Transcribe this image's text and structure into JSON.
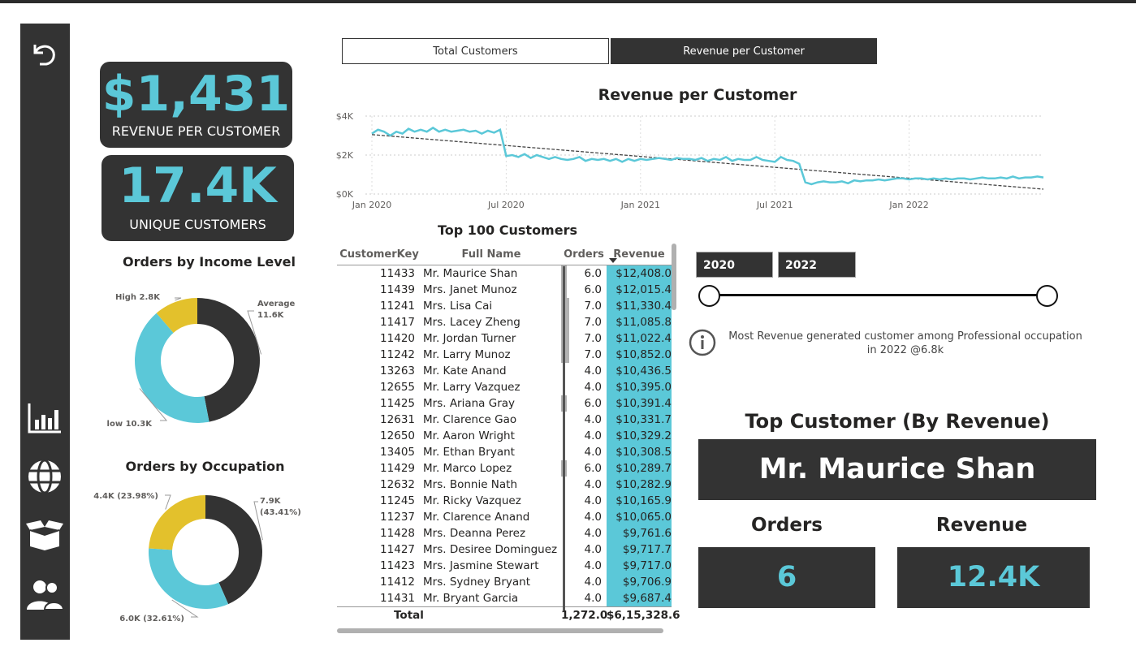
{
  "kpis": {
    "revenue_per_customer": {
      "value": "$1,431",
      "label": "REVENUE PER CUSTOMER"
    },
    "unique_customers": {
      "value": "17.4K",
      "label": "UNIQUE CUSTOMERS"
    }
  },
  "nav": {
    "icons": [
      "back-icon",
      "bar-chart-icon",
      "globe-icon",
      "box-icon",
      "users-icon"
    ]
  },
  "toggle": {
    "total_customers": "Total Customers",
    "revenue_per_customer": "Revenue per Customer",
    "active": "revenue_per_customer"
  },
  "line_chart_title": "Revenue per Customer",
  "income_title": "Orders by Income Level",
  "occupation_title": "Orders by Occupation",
  "table": {
    "title": "Top 100 Customers",
    "headers": [
      "CustomerKey",
      "Full Name",
      "Orders",
      "Revenue"
    ],
    "rows": [
      [
        "11433",
        "Mr. Maurice Shan",
        "6.0",
        "$12,408.0"
      ],
      [
        "11439",
        "Mrs. Janet Munoz",
        "6.0",
        "$12,015.4"
      ],
      [
        "11241",
        "Mrs. Lisa Cai",
        "7.0",
        "$11,330.4"
      ],
      [
        "11417",
        "Mrs. Lacey Zheng",
        "7.0",
        "$11,085.8"
      ],
      [
        "11420",
        "Mr. Jordan Turner",
        "7.0",
        "$11,022.4"
      ],
      [
        "11242",
        "Mr. Larry Munoz",
        "7.0",
        "$10,852.0"
      ],
      [
        "13263",
        "Mr. Kate Anand",
        "4.0",
        "$10,436.5"
      ],
      [
        "12655",
        "Mr. Larry Vazquez",
        "4.0",
        "$10,395.0"
      ],
      [
        "11425",
        "Mrs. Ariana Gray",
        "6.0",
        "$10,391.4"
      ],
      [
        "12631",
        "Mr. Clarence Gao",
        "4.0",
        "$10,331.7"
      ],
      [
        "12650",
        "Mr. Aaron Wright",
        "4.0",
        "$10,329.2"
      ],
      [
        "13405",
        "Mr. Ethan Bryant",
        "4.0",
        "$10,308.5"
      ],
      [
        "11429",
        "Mr. Marco Lopez",
        "6.0",
        "$10,289.7"
      ],
      [
        "12632",
        "Mrs. Bonnie Nath",
        "4.0",
        "$10,282.9"
      ],
      [
        "11245",
        "Mr. Ricky Vazquez",
        "4.0",
        "$10,165.9"
      ],
      [
        "11237",
        "Mr. Clarence Anand",
        "4.0",
        "$10,065.0"
      ],
      [
        "11428",
        "Mrs. Deanna Perez",
        "4.0",
        "$9,761.6"
      ],
      [
        "11427",
        "Mrs. Desiree Dominguez",
        "4.0",
        "$9,717.7"
      ],
      [
        "11423",
        "Mrs. Jasmine Stewart",
        "4.0",
        "$9,717.0"
      ],
      [
        "11412",
        "Mrs. Sydney Bryant",
        "4.0",
        "$9,706.9"
      ],
      [
        "11431",
        "Mr. Bryant Garcia",
        "4.0",
        "$9,687.4"
      ]
    ],
    "total": {
      "label": "Total",
      "orders": "1,272.0",
      "revenue": "$6,15,328.6"
    }
  },
  "slider": {
    "start": "2020",
    "end": "2022"
  },
  "insight": "Most Revenue generated customer among Professional occupation in 2022 @6.8k",
  "top_customer": {
    "title": "Top Customer (By Revenue)",
    "name": "Mr. Maurice Shan",
    "orders_label": "Orders",
    "orders_value": "6",
    "revenue_label": "Revenue",
    "revenue_value": "12.4K"
  },
  "colors": {
    "dark": "#333333",
    "accent": "#5bc8d8",
    "yellow": "#e3c12c"
  },
  "chart_data": [
    {
      "type": "line",
      "title": "Revenue per Customer",
      "x_ticks": [
        "Jan 2020",
        "Jul 2020",
        "Jan 2021",
        "Jul 2021",
        "Jan 2022"
      ],
      "y_ticks": [
        "$0K",
        "$2K",
        "$4K"
      ],
      "ylim": [
        0,
        4000
      ],
      "grid": true,
      "series": [
        {
          "values": [
            3100,
            3300,
            3200,
            3000,
            3200,
            3100,
            3350,
            3200,
            3300,
            3200,
            3400,
            3200,
            3300,
            3200,
            3250,
            3300,
            3200,
            3250,
            3100,
            3250,
            3150,
            3300,
            1950,
            2000,
            1900,
            2050,
            1850,
            2000,
            1900,
            1800,
            1900,
            1800,
            1750,
            1800,
            1900,
            1700,
            1800,
            1750,
            1800,
            1700,
            1800,
            1650,
            1800,
            1700,
            1800,
            1750,
            1800,
            1850,
            1800,
            1750,
            1850,
            1800,
            1800,
            1750,
            1850,
            1700,
            1800,
            1750,
            1900,
            1700,
            1800,
            1750,
            1750,
            1900,
            1750,
            1700,
            1650,
            1900,
            1750,
            1700,
            1550,
            600,
            500,
            600,
            650,
            600,
            600,
            650,
            550,
            700,
            650,
            700,
            700,
            750,
            700,
            750,
            800,
            800,
            750,
            800,
            800,
            750,
            800,
            750,
            800,
            750,
            800,
            800,
            750,
            800,
            850,
            800,
            800,
            850,
            800,
            900,
            800,
            850,
            850,
            900,
            850
          ],
          "color": "#5bc8d8"
        }
      ],
      "trend": {
        "start": 3050,
        "end": 250
      }
    },
    {
      "type": "pie",
      "title": "Orders by Income Level",
      "slices": [
        {
          "label": "Average",
          "value": 11.6,
          "display": "11.6K",
          "color": "#333333"
        },
        {
          "label": "low",
          "value": 10.3,
          "display": "10.3K",
          "color": "#5bc8d8"
        },
        {
          "label": "High",
          "value": 2.8,
          "display": "2.8K",
          "color": "#e3c12c"
        }
      ]
    },
    {
      "type": "pie",
      "title": "Orders by Occupation",
      "slices": [
        {
          "value": 43.41,
          "display": "7.9K (43.41%)",
          "color": "#333333"
        },
        {
          "value": 32.61,
          "display": "6.0K (32.61%)",
          "color": "#5bc8d8"
        },
        {
          "value": 23.98,
          "display": "4.4K (23.98%)",
          "color": "#e3c12c"
        }
      ]
    }
  ]
}
